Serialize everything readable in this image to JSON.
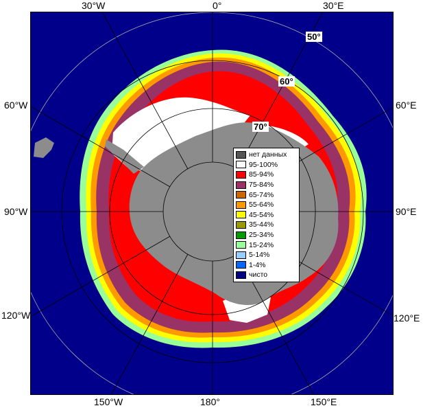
{
  "map": {
    "longitude_labels": {
      "top": [
        "30°W",
        "0°",
        "30°E"
      ],
      "left": [
        "60°W",
        "90°W",
        "120°W"
      ],
      "right": [
        "60°E",
        "90°E",
        "120°E"
      ],
      "bottom": [
        "150°W",
        "180°",
        "150°E"
      ]
    },
    "latitude_labels": [
      "50°",
      "60°",
      "70°"
    ],
    "colors": {
      "ocean": "#00008b",
      "land": "#8c8c8c",
      "no_data": "#555555",
      "grid": "#000000"
    }
  },
  "legend": {
    "items": [
      {
        "label": "нет данных",
        "color": "#555555"
      },
      {
        "label": "95-100%",
        "color": "#ffffff"
      },
      {
        "label": "85-94%",
        "color": "#ff0000"
      },
      {
        "label": "75-84%",
        "color": "#993366"
      },
      {
        "label": "65-74%",
        "color": "#cc6600"
      },
      {
        "label": "55-64%",
        "color": "#ff9900"
      },
      {
        "label": "45-54%",
        "color": "#ffff00"
      },
      {
        "label": "35-44%",
        "color": "#999900"
      },
      {
        "label": "25-34%",
        "color": "#009900"
      },
      {
        "label": "15-24%",
        "color": "#99ff99"
      },
      {
        "label": "5-14%",
        "color": "#99ccff"
      },
      {
        "label": "1-4%",
        "color": "#0066ff"
      },
      {
        "label": "чисто",
        "color": "#000080"
      }
    ]
  }
}
